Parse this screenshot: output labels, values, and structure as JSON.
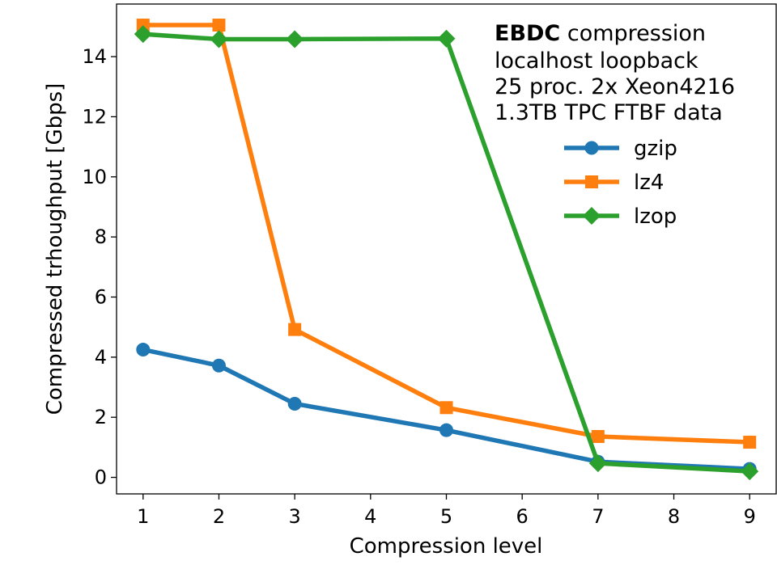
{
  "chart_data": {
    "type": "line",
    "xlabel": "Compression level",
    "ylabel": "Compressed trhoughput [Gbps]",
    "xlim": [
      0.65,
      9.35
    ],
    "ylim": [
      -0.55,
      15.75
    ],
    "xticks": [
      1,
      2,
      3,
      4,
      5,
      6,
      7,
      8,
      9
    ],
    "yticks": [
      0,
      2,
      4,
      6,
      8,
      10,
      12,
      14
    ],
    "grid": false,
    "legend_position": "upper-right",
    "annotation": {
      "bold": "EBDC",
      "line1_rest": " compression",
      "line2": "localhost loopback",
      "line3": "25 proc. 2x Xeon4216",
      "line4": "1.3TB TPC FTBF data"
    },
    "series": [
      {
        "name": "gzip",
        "color": "#1f77b4",
        "marker": "circle",
        "x": [
          1,
          2,
          3,
          5,
          7,
          9
        ],
        "y": [
          4.25,
          3.72,
          2.45,
          1.57,
          0.52,
          0.28
        ]
      },
      {
        "name": "lz4",
        "color": "#ff7f0e",
        "marker": "square",
        "x": [
          1,
          2,
          3,
          5,
          7,
          9
        ],
        "y": [
          15.05,
          15.05,
          4.92,
          2.32,
          1.36,
          1.17
        ]
      },
      {
        "name": "lzop",
        "color": "#2ca02c",
        "marker": "diamond",
        "x": [
          1,
          2,
          3,
          5,
          7,
          9
        ],
        "y": [
          14.75,
          14.58,
          14.58,
          14.6,
          0.47,
          0.2
        ]
      }
    ]
  }
}
